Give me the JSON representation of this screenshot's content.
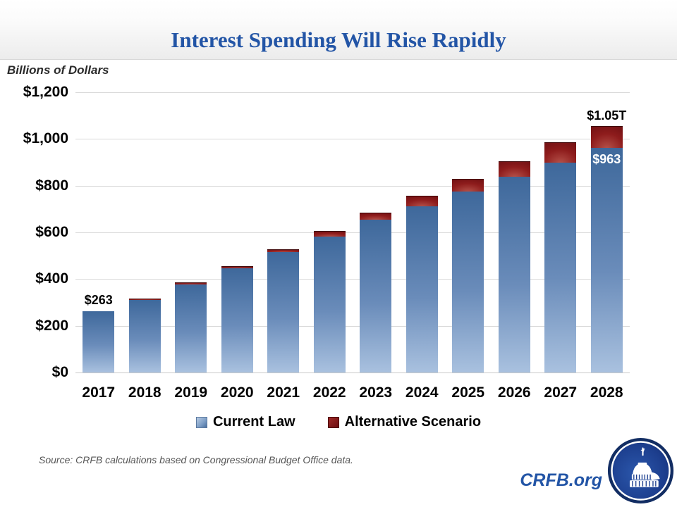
{
  "header": {
    "title": "Interest Spending Will Rise Rapidly"
  },
  "chart_data": {
    "type": "bar",
    "stacked": true,
    "title": "Interest Spending Will Rise Rapidly",
    "unit_label": "Billions of Dollars",
    "categories": [
      "2017",
      "2018",
      "2019",
      "2020",
      "2021",
      "2022",
      "2023",
      "2024",
      "2025",
      "2026",
      "2027",
      "2028"
    ],
    "series": [
      {
        "name": "Current Law",
        "values": [
          263,
          310,
          376,
          447,
          516,
          583,
          653,
          713,
          775,
          838,
          899,
          963
        ]
      },
      {
        "name": "Alternative Scenario",
        "values": [
          0,
          4,
          6,
          5,
          10,
          20,
          29,
          40,
          50,
          65,
          83,
          88
        ]
      }
    ],
    "stacked_totals": [
      263,
      314,
      382,
      452,
      526,
      603,
      682,
      753,
      825,
      903,
      982,
      1051
    ],
    "ylim": [
      0,
      1200
    ],
    "y_ticks": [
      {
        "value": 1200,
        "label": "$1,200"
      },
      {
        "value": 1000,
        "label": "$1,000"
      },
      {
        "value": 800,
        "label": "$800"
      },
      {
        "value": 600,
        "label": "$600"
      },
      {
        "value": 400,
        "label": "$400"
      },
      {
        "value": 200,
        "label": "$200"
      },
      {
        "value": 0,
        "label": "$0"
      }
    ],
    "grid": true,
    "legend_position": "bottom",
    "annotations": [
      {
        "category": "2017",
        "text": "$263",
        "placement": "above"
      },
      {
        "category": "2028",
        "text": "$1.05T",
        "placement": "above"
      },
      {
        "category": "2028",
        "text": "$963",
        "placement": "inside-top"
      }
    ]
  },
  "legend": {
    "items": [
      {
        "label": "Current Law",
        "color": "#5b84b4"
      },
      {
        "label": "Alternative Scenario",
        "color": "#7a0c10"
      }
    ]
  },
  "footer": {
    "source": "Source: CRFB calculations based on Congressional Budget Office data.",
    "site": "CRFB.org"
  },
  "colors": {
    "title_blue": "#2355a6",
    "bar_blue_top": "#3e689b",
    "bar_blue_bottom": "#a9c1df",
    "bar_red": "#6b0d10",
    "gridline": "#d9d9d9"
  },
  "icons": {
    "logo": "capitol-dome-logo"
  }
}
